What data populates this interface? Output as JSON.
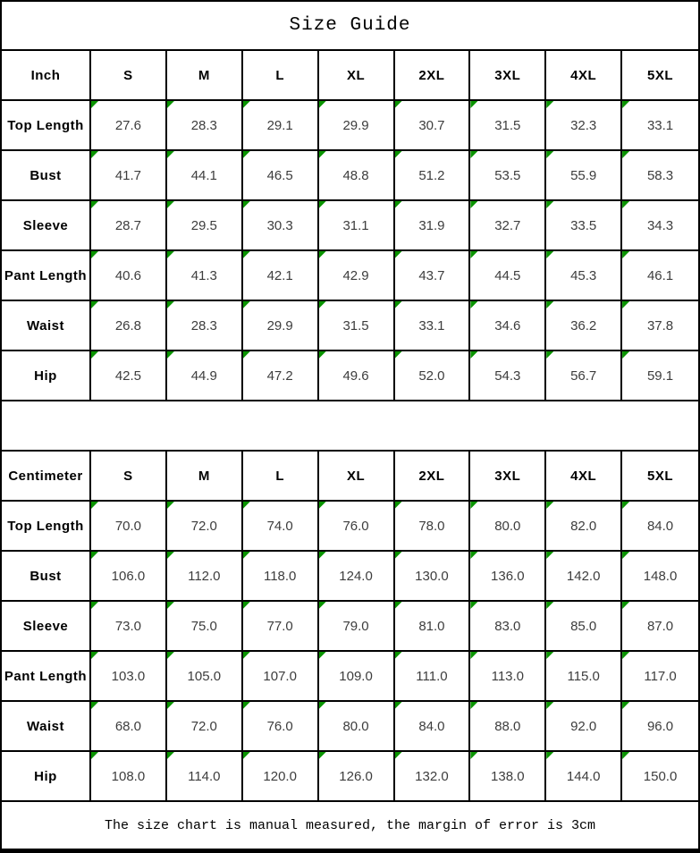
{
  "title": "Size Guide",
  "footer_note": "The size chart is manual measured, the margin of error is 3cm",
  "sizes": [
    "S",
    "M",
    "L",
    "XL",
    "2XL",
    "3XL",
    "4XL",
    "5XL"
  ],
  "inch_table": {
    "unit_label": "Inch",
    "rows": [
      {
        "label": "Top Length",
        "values": [
          "27.6",
          "28.3",
          "29.1",
          "29.9",
          "30.7",
          "31.5",
          "32.3",
          "33.1"
        ]
      },
      {
        "label": "Bust",
        "values": [
          "41.7",
          "44.1",
          "46.5",
          "48.8",
          "51.2",
          "53.5",
          "55.9",
          "58.3"
        ]
      },
      {
        "label": "Sleeve",
        "values": [
          "28.7",
          "29.5",
          "30.3",
          "31.1",
          "31.9",
          "32.7",
          "33.5",
          "34.3"
        ]
      },
      {
        "label": "Pant Length",
        "values": [
          "40.6",
          "41.3",
          "42.1",
          "42.9",
          "43.7",
          "44.5",
          "45.3",
          "46.1"
        ]
      },
      {
        "label": "Waist",
        "values": [
          "26.8",
          "28.3",
          "29.9",
          "31.5",
          "33.1",
          "34.6",
          "36.2",
          "37.8"
        ]
      },
      {
        "label": "Hip",
        "values": [
          "42.5",
          "44.9",
          "47.2",
          "49.6",
          "52.0",
          "54.3",
          "56.7",
          "59.1"
        ]
      }
    ]
  },
  "cm_table": {
    "unit_label": "Centimeter",
    "rows": [
      {
        "label": "Top Length",
        "values": [
          "70.0",
          "72.0",
          "74.0",
          "76.0",
          "78.0",
          "80.0",
          "82.0",
          "84.0"
        ]
      },
      {
        "label": "Bust",
        "values": [
          "106.0",
          "112.0",
          "118.0",
          "124.0",
          "130.0",
          "136.0",
          "142.0",
          "148.0"
        ]
      },
      {
        "label": "Sleeve",
        "values": [
          "73.0",
          "75.0",
          "77.0",
          "79.0",
          "81.0",
          "83.0",
          "85.0",
          "87.0"
        ]
      },
      {
        "label": "Pant Length",
        "values": [
          "103.0",
          "105.0",
          "107.0",
          "109.0",
          "111.0",
          "113.0",
          "115.0",
          "117.0"
        ]
      },
      {
        "label": "Waist",
        "values": [
          "68.0",
          "72.0",
          "76.0",
          "80.0",
          "84.0",
          "88.0",
          "92.0",
          "96.0"
        ]
      },
      {
        "label": "Hip",
        "values": [
          "108.0",
          "114.0",
          "120.0",
          "126.0",
          "132.0",
          "138.0",
          "144.0",
          "150.0"
        ]
      }
    ]
  },
  "colors": {
    "marker_green": "#0a9400",
    "border": "#000000",
    "value_text": "#3d3d3d"
  },
  "chart_data": [
    {
      "type": "table",
      "title": "Size Guide",
      "unit": "Inch",
      "columns": [
        "Inch",
        "S",
        "M",
        "L",
        "XL",
        "2XL",
        "3XL",
        "4XL",
        "5XL"
      ],
      "rows": [
        [
          "Top Length",
          27.6,
          28.3,
          29.1,
          29.9,
          30.7,
          31.5,
          32.3,
          33.1
        ],
        [
          "Bust",
          41.7,
          44.1,
          46.5,
          48.8,
          51.2,
          53.5,
          55.9,
          58.3
        ],
        [
          "Sleeve",
          28.7,
          29.5,
          30.3,
          31.1,
          31.9,
          32.7,
          33.5,
          34.3
        ],
        [
          "Pant Length",
          40.6,
          41.3,
          42.1,
          42.9,
          43.7,
          44.5,
          45.3,
          46.1
        ],
        [
          "Waist",
          26.8,
          28.3,
          29.9,
          31.5,
          33.1,
          34.6,
          36.2,
          37.8
        ],
        [
          "Hip",
          42.5,
          44.9,
          47.2,
          49.6,
          52.0,
          54.3,
          56.7,
          59.1
        ]
      ]
    },
    {
      "type": "table",
      "title": "Size Guide",
      "unit": "Centimeter",
      "columns": [
        "Centimeter",
        "S",
        "M",
        "L",
        "XL",
        "2XL",
        "3XL",
        "4XL",
        "5XL"
      ],
      "rows": [
        [
          "Top Length",
          70.0,
          72.0,
          74.0,
          76.0,
          78.0,
          80.0,
          82.0,
          84.0
        ],
        [
          "Bust",
          106.0,
          112.0,
          118.0,
          124.0,
          130.0,
          136.0,
          142.0,
          148.0
        ],
        [
          "Sleeve",
          73.0,
          75.0,
          77.0,
          79.0,
          81.0,
          83.0,
          85.0,
          87.0
        ],
        [
          "Pant Length",
          103.0,
          105.0,
          107.0,
          109.0,
          111.0,
          113.0,
          115.0,
          117.0
        ],
        [
          "Waist",
          68.0,
          72.0,
          76.0,
          80.0,
          84.0,
          88.0,
          92.0,
          96.0
        ],
        [
          "Hip",
          108.0,
          114.0,
          120.0,
          126.0,
          132.0,
          138.0,
          144.0,
          150.0
        ]
      ],
      "footnote": "The size chart is manual measured, the margin of error is 3cm"
    }
  ]
}
